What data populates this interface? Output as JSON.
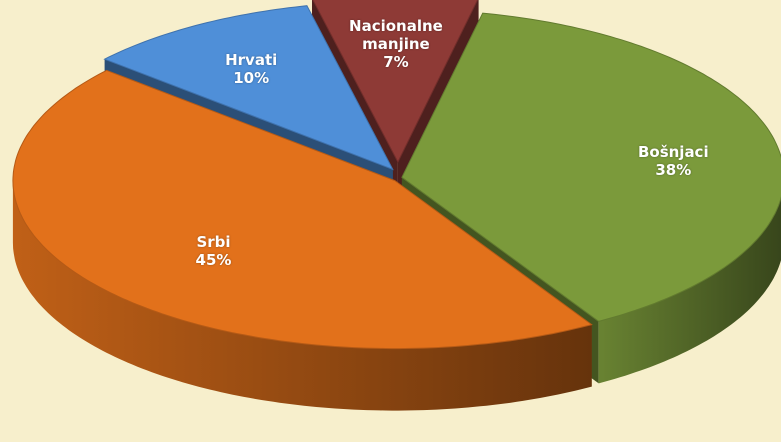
{
  "chart_data": {
    "type": "pie",
    "categories": [
      "Nacionalne manjine",
      "Bošnjaci",
      "Srbi",
      "Hrvati"
    ],
    "values": [
      7,
      38,
      45,
      10
    ],
    "value_labels": [
      "7%",
      "38%",
      "45%",
      "10%"
    ],
    "colors": [
      "#8e3a36",
      "#7b9a3b",
      "#e2711b",
      "#4f8fd8"
    ]
  }
}
